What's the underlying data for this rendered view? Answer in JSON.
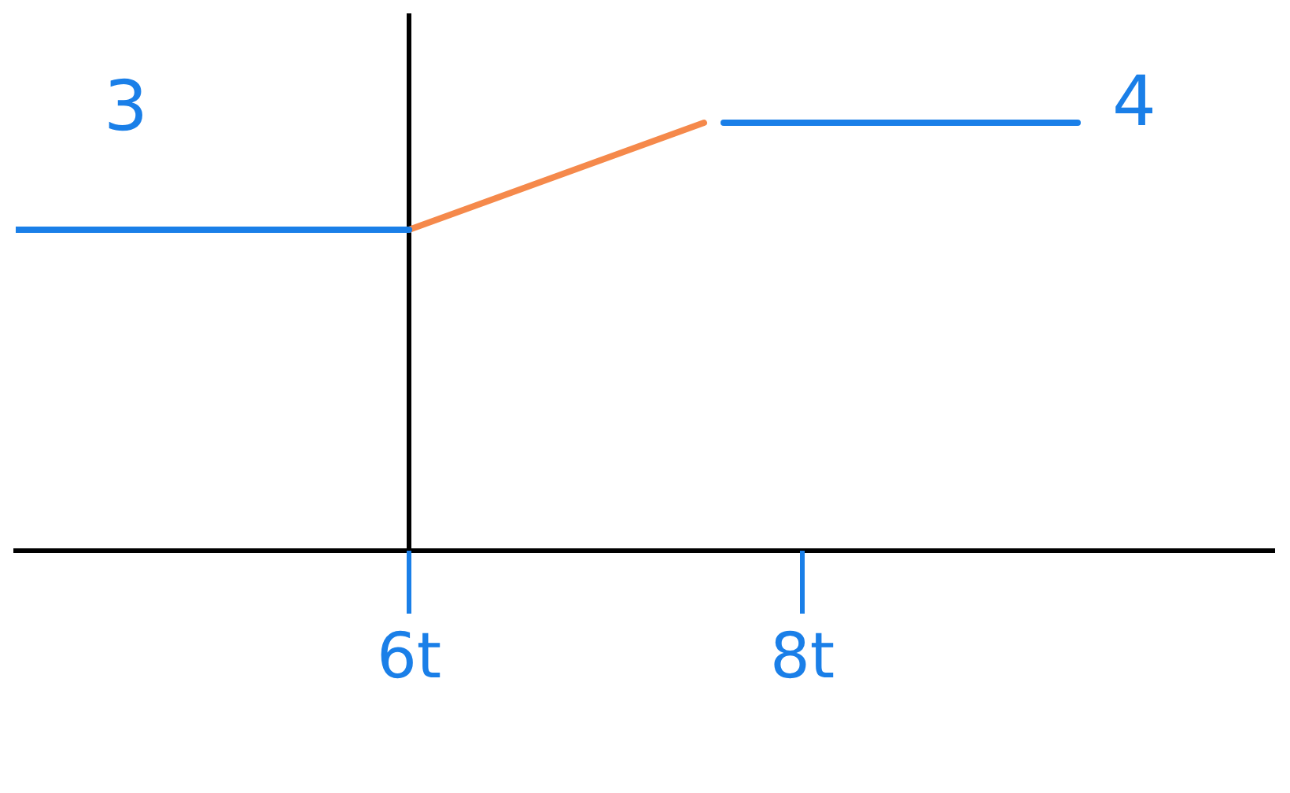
{
  "chart_data": {
    "type": "line",
    "xlim": [
      4,
      10.4
    ],
    "ylim": [
      0,
      5
    ],
    "xticks": [
      {
        "value": 6,
        "label": "6t"
      },
      {
        "value": 8,
        "label": "8t"
      }
    ],
    "tick_labels": "x",
    "legend": false,
    "marker": "none",
    "line_style": "solid",
    "series": [
      {
        "color": "#1a7fe8",
        "x": [
          4,
          6
        ],
        "values": [
          3,
          3
        ],
        "value_labels": [
          "3",
          null
        ]
      },
      {
        "color": "#f5894b",
        "x": [
          6,
          7.5
        ],
        "values": [
          3,
          4
        ]
      },
      {
        "color": "#1a7fe8",
        "x": [
          7.6,
          9.4
        ],
        "values": [
          4,
          4
        ],
        "value_labels": [
          null,
          "4"
        ]
      }
    ]
  }
}
